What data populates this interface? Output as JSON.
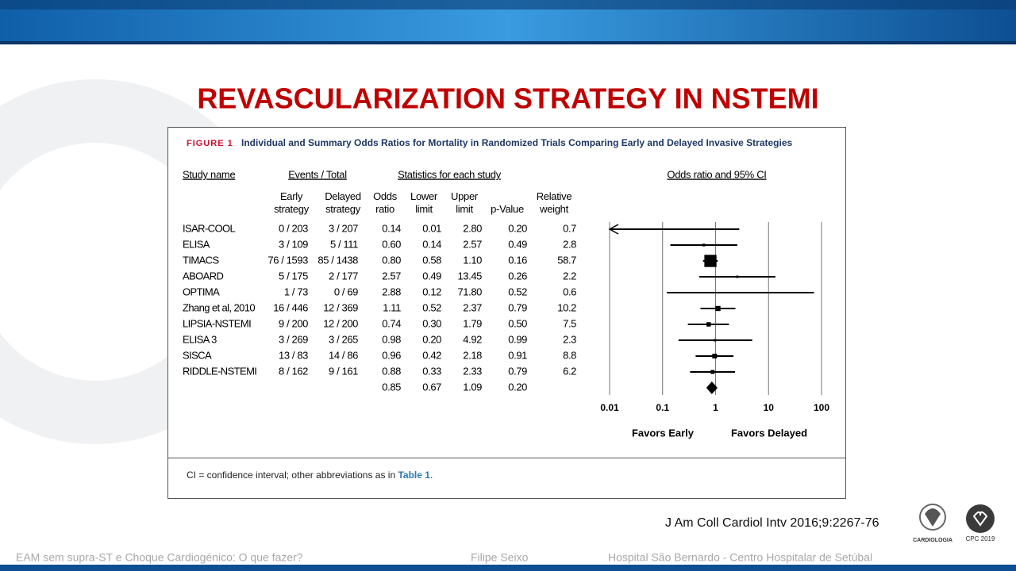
{
  "slide_title": "REVASCULARIZATION STRATEGY IN NSTEMI",
  "figure_label": "FIGURE 1",
  "figure_caption": "Individual and Summary Odds Ratios for Mortality in Randomized Trials Comparing Early and Delayed Invasive Strategies",
  "footnote": [
    "CI = confidence interval; other abbreviations as in ",
    "Table 1",
    "."
  ],
  "citation": "J Am Coll Cardiol Intv 2016;9:2267-76",
  "footer": [
    "EAM sem supra-ST e Choque Cardiogénico: O que fazer?",
    "Filipe Seixo",
    "Hospital São Bernardo  - Centro Hospitalar de Setúbal"
  ],
  "logos": [
    "CARDIOLOGIA",
    "CPC 2019"
  ],
  "chart_data": {
    "type": "forest",
    "group_headers": [
      "Study name",
      "Events / Total",
      "Statistics for each study"
    ],
    "plot_title": "Odds ratio and 95% CI",
    "categories": [
      "ISAR-COOL",
      "ELISA",
      "TIMACS",
      "ABOARD",
      "OPTIMA",
      "Zhang et al, 2010",
      "LIPSIA-NSTEMI",
      "ELISA 3",
      "SISCA",
      "RIDDLE-NSTEMI",
      null
    ],
    "columns": [
      {
        "name": "Early strategy",
        "values": [
          "0 / 203",
          "3 / 109",
          "76 / 1593",
          "5 / 175",
          "1 / 73",
          "16 / 446",
          "9 / 200",
          "3 / 269",
          "13 / 83",
          "8 / 162",
          null
        ]
      },
      {
        "name": "Delayed strategy",
        "values": [
          "3 / 207",
          "5 / 111",
          "85 / 1438",
          "2 / 177",
          "0 / 69",
          "12 / 369",
          "12 / 200",
          "3 / 265",
          "14 / 86",
          "9 / 161",
          null
        ]
      },
      {
        "name": "Odds ratio",
        "values": [
          0.14,
          0.6,
          0.8,
          2.57,
          2.88,
          1.11,
          0.74,
          0.98,
          0.96,
          0.88,
          0.85
        ],
        "value_labels": [
          "0.14",
          "0.60",
          "0.80",
          "2.57",
          "2.88",
          "1.11",
          "0.74",
          "0.98",
          "0.96",
          "0.88",
          "0.85"
        ]
      },
      {
        "name": "Lower limit",
        "values": [
          0.01,
          0.14,
          0.58,
          0.49,
          0.12,
          0.52,
          0.3,
          0.2,
          0.42,
          0.33,
          0.67
        ],
        "value_labels": [
          "0.01",
          "0.14",
          "0.58",
          "0.49",
          "0.12",
          "0.52",
          "0.30",
          "0.20",
          "0.42",
          "0.33",
          "0.67"
        ]
      },
      {
        "name": "Upper limit",
        "values": [
          2.8,
          2.57,
          1.1,
          13.45,
          71.8,
          2.37,
          1.79,
          4.92,
          2.18,
          2.33,
          1.09
        ],
        "value_labels": [
          "2.80",
          "2.57",
          "1.10",
          "13.45",
          "71.80",
          "2.37",
          "1.79",
          "4.92",
          "2.18",
          "2.33",
          "1.09"
        ]
      },
      {
        "name": "p-Value",
        "values": [
          0.2,
          0.49,
          0.16,
          0.26,
          0.52,
          0.79,
          0.5,
          0.99,
          0.91,
          0.79,
          0.2
        ],
        "value_labels": [
          "0.20",
          "0.49",
          "0.16",
          "0.26",
          "0.52",
          "0.79",
          "0.50",
          "0.99",
          "0.91",
          "0.79",
          "0.20"
        ]
      },
      {
        "name": "Relative weight",
        "values": [
          0.7,
          2.8,
          58.7,
          2.2,
          0.6,
          10.2,
          7.5,
          2.3,
          8.8,
          6.2,
          null
        ]
      }
    ],
    "estimate_column": 2,
    "lower_column": 3,
    "upper_column": 4,
    "weight_column": 6,
    "xlim": [
      0.01,
      100
    ],
    "xticks": [
      0.01,
      0.1,
      1,
      10,
      100
    ],
    "log_scale": true,
    "grid": true,
    "x_labels": [
      "Favors Early",
      "Favors Delayed"
    ],
    "color": "#000000"
  }
}
